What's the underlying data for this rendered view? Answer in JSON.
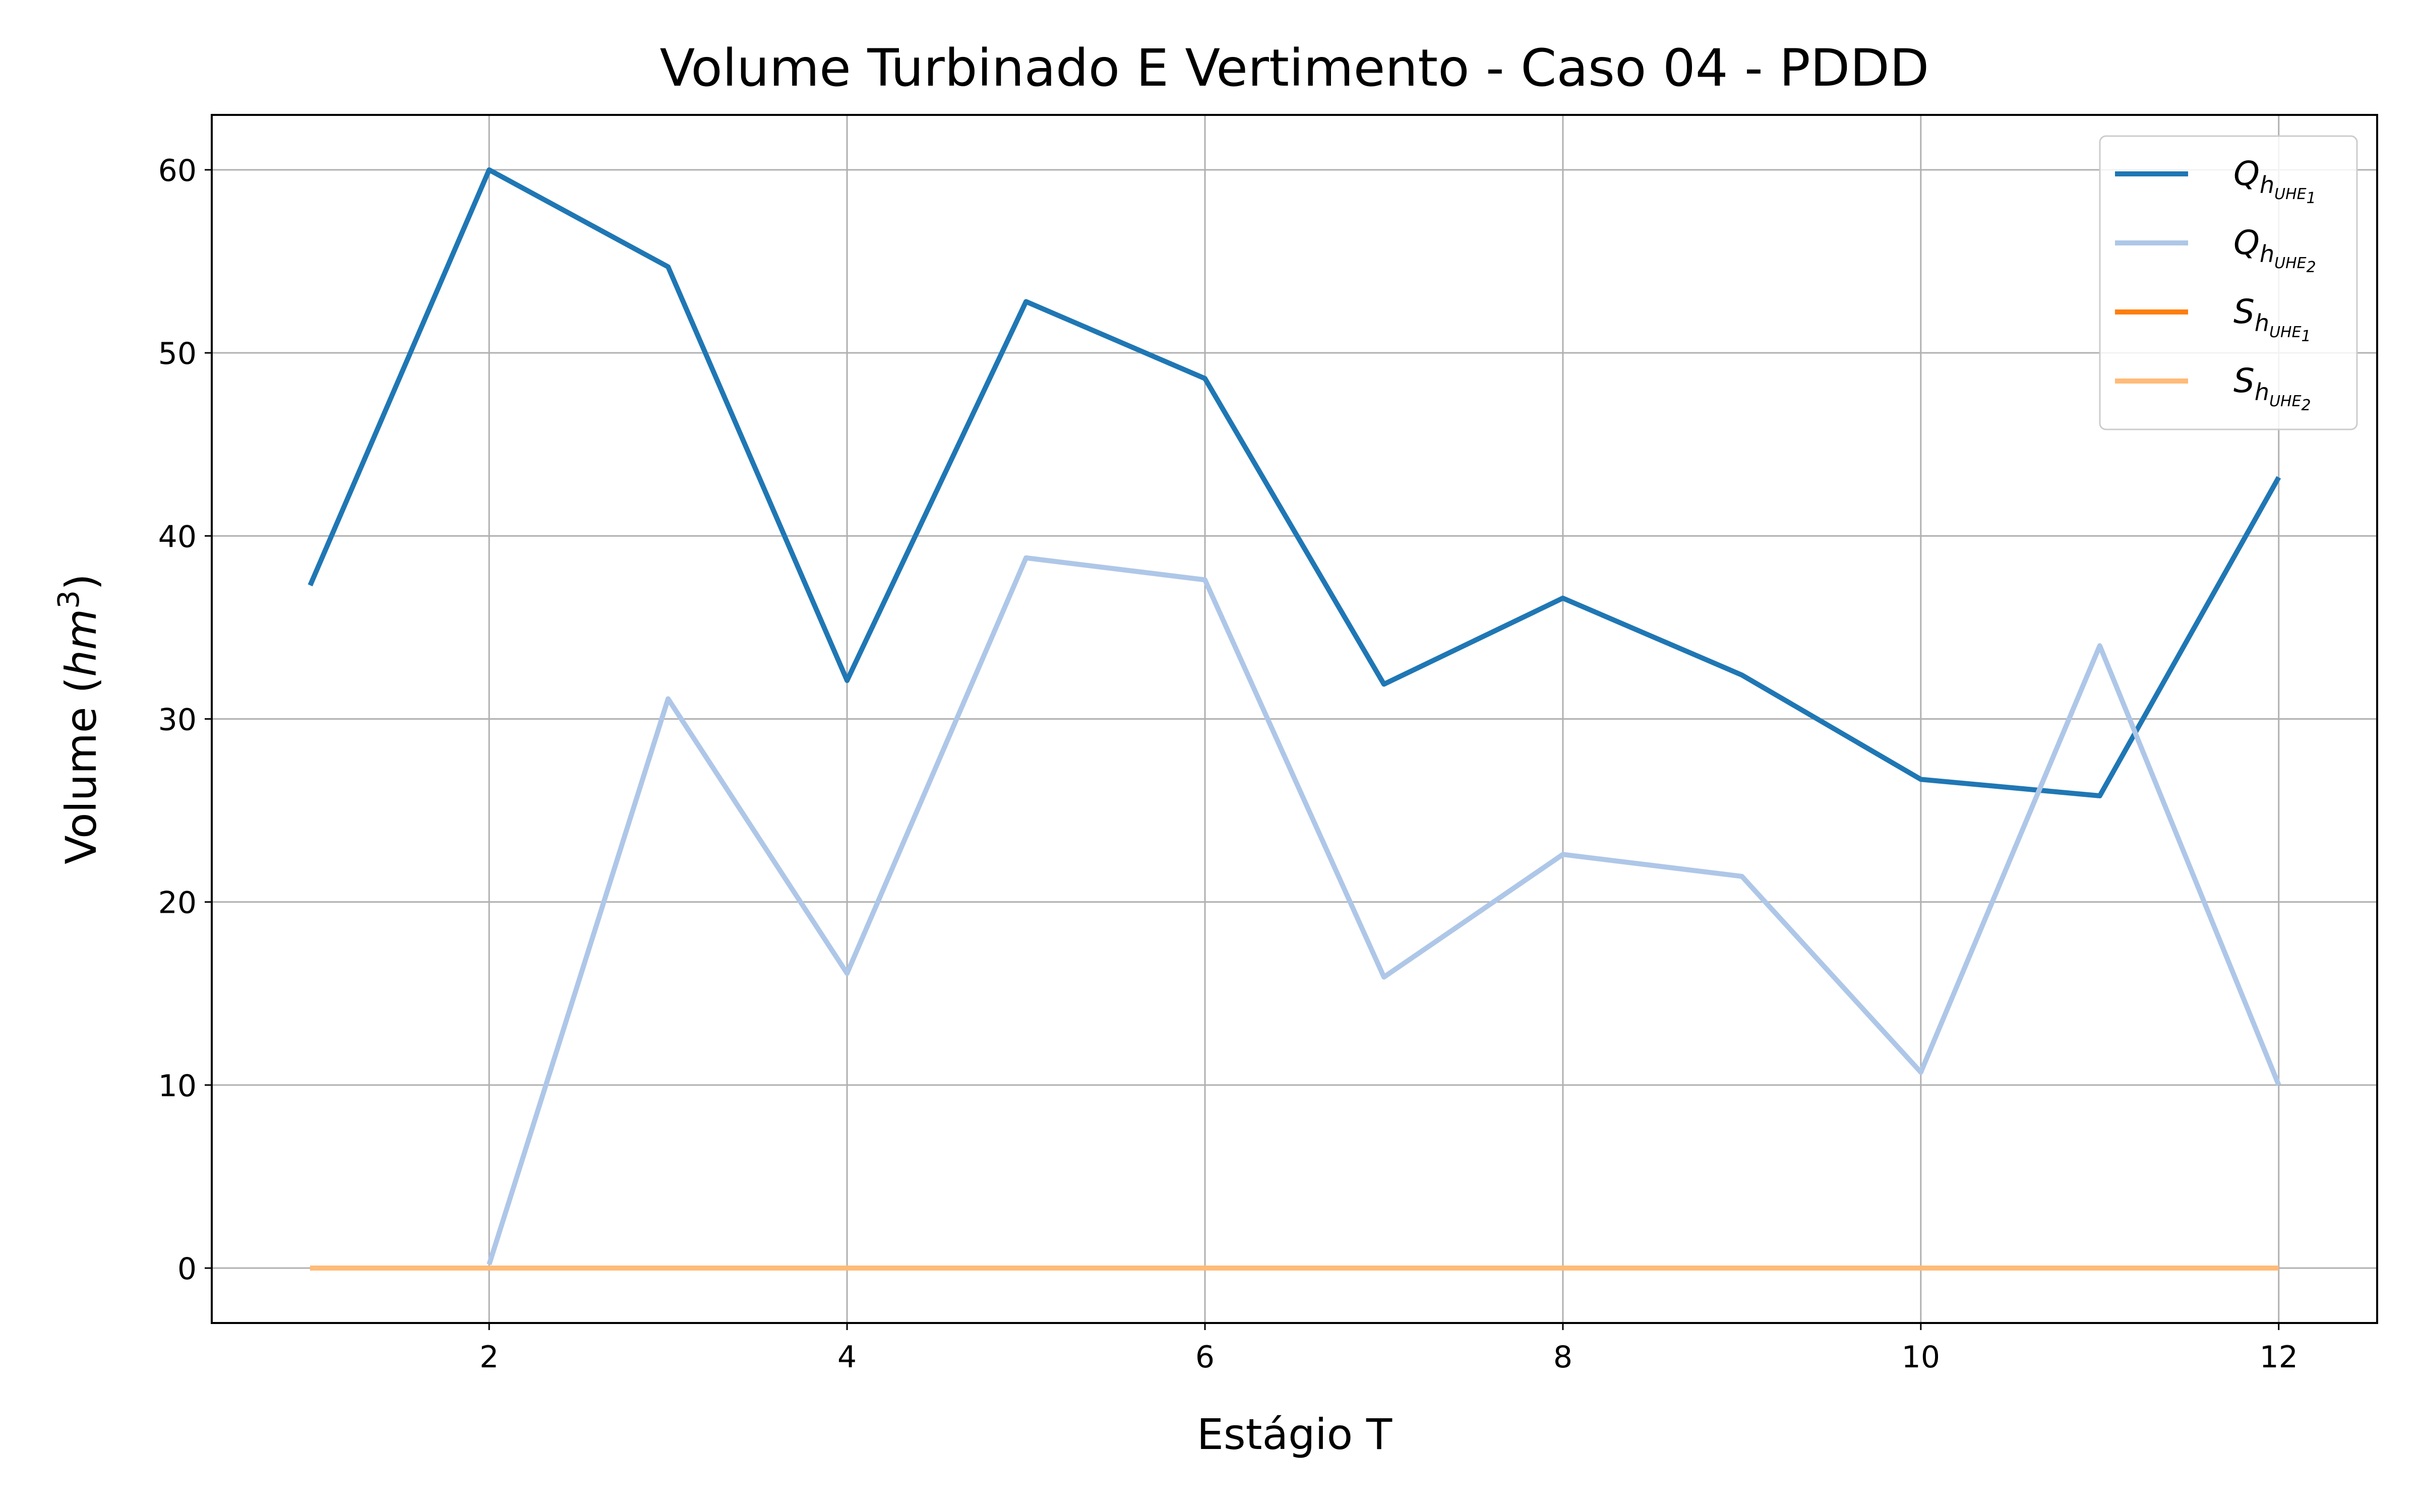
{
  "chart_data": {
    "type": "line",
    "title": "Volume Turbinado E Vertimento - Caso 04 - PDDD",
    "xlabel": "Estágio T",
    "ylabel": "Volume",
    "ylabel_unit_base": "hm",
    "ylabel_unit_exp": "3",
    "xlim": [
      0.45,
      12.55
    ],
    "ylim": [
      -3,
      63
    ],
    "xticks": [
      2,
      4,
      6,
      8,
      10,
      12
    ],
    "yticks": [
      0,
      10,
      20,
      30,
      40,
      50,
      60
    ],
    "grid": true,
    "legend_position": "top-right",
    "x": [
      1,
      2,
      3,
      4,
      5,
      6,
      7,
      8,
      9,
      10,
      11,
      12
    ],
    "series": [
      {
        "name": "Q",
        "name_sub": "h",
        "name_subsub": "UHE",
        "name_subsub_index": "1",
        "color": "#1f77b4",
        "values": [
          37.3,
          60.0,
          54.7,
          32.1,
          52.8,
          48.6,
          31.9,
          36.6,
          32.4,
          26.7,
          25.8,
          43.2
        ]
      },
      {
        "name": "Q",
        "name_sub": "h",
        "name_subsub": "UHE",
        "name_subsub_index": "2",
        "color": "#aec7e8",
        "values": [
          null,
          0.2,
          31.1,
          16.1,
          38.8,
          37.6,
          15.9,
          22.6,
          21.4,
          10.7,
          34.0,
          10.0
        ]
      },
      {
        "name": "S",
        "name_sub": "h",
        "name_subsub": "UHE",
        "name_subsub_index": "1",
        "color": "#ff7f0e",
        "values": [
          0,
          0,
          0,
          0,
          0,
          0,
          0,
          0,
          0,
          0,
          0,
          0
        ]
      },
      {
        "name": "S",
        "name_sub": "h",
        "name_subsub": "UHE",
        "name_subsub_index": "2",
        "color": "#ffbb78",
        "values": [
          0,
          0,
          0,
          0,
          0,
          0,
          0,
          0,
          0,
          0,
          0,
          0
        ]
      }
    ]
  }
}
